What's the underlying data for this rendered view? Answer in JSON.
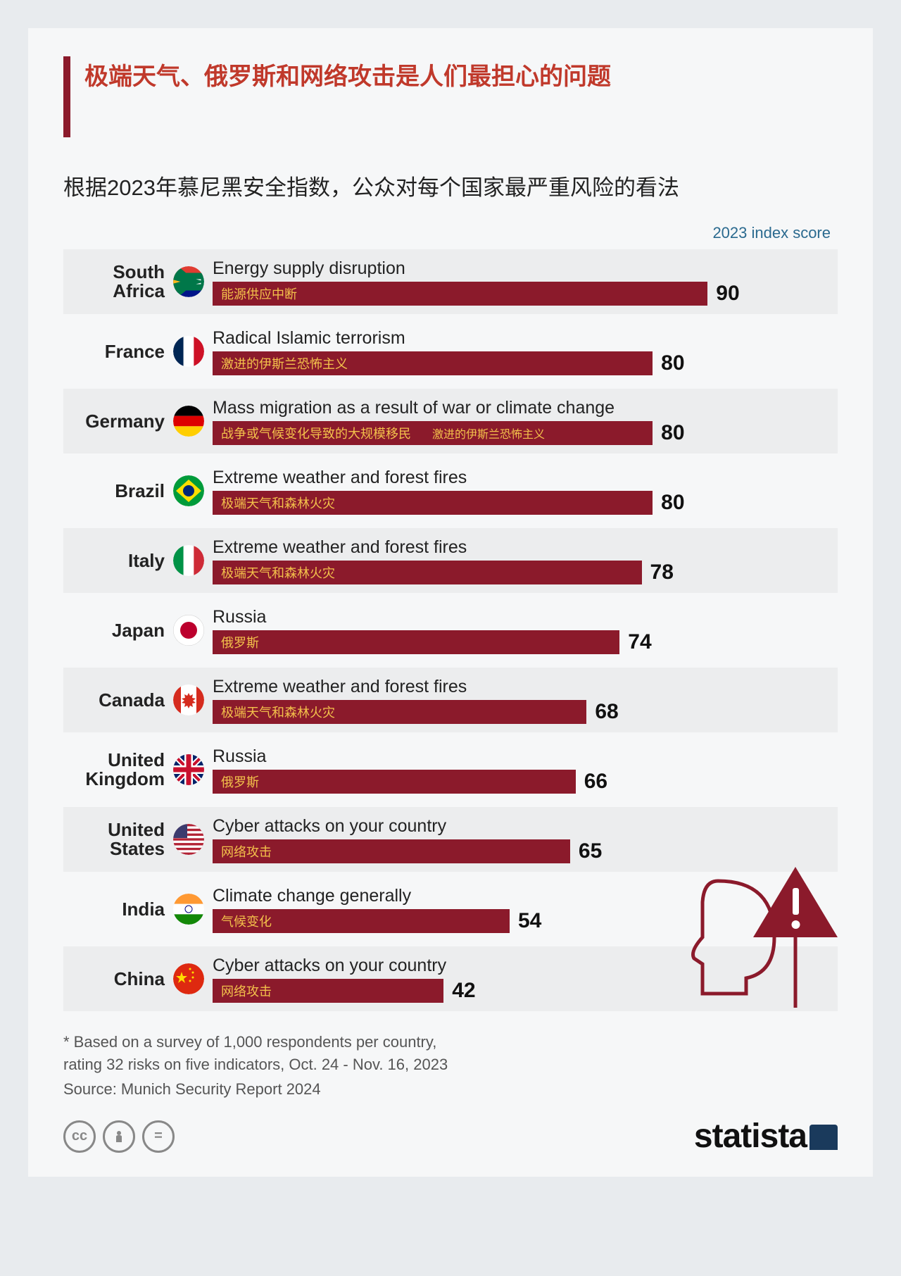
{
  "title": "极端天气、俄罗斯和网络攻击是人们最担心的问题",
  "subtitle": "根据2023年慕尼黑安全指数，公众对每个国家最严重风险的看法",
  "score_label": "2023 index score",
  "chart": {
    "type": "bar",
    "max_value": 100,
    "bar_color": "#8b1a2b",
    "bar_text_color": "#f3c14b",
    "value_fontsize": 30,
    "countries": [
      {
        "name": "South Africa",
        "risk_en": "Energy supply disruption",
        "risk_zh": "能源供应中断",
        "value": 90,
        "flag": "za",
        "extra": ""
      },
      {
        "name": "France",
        "risk_en": "Radical Islamic terrorism",
        "risk_zh": "激进的伊斯兰恐怖主义",
        "value": 80,
        "flag": "fr",
        "extra": ""
      },
      {
        "name": "Germany",
        "risk_en": "Mass migration as a result of war or climate change",
        "risk_zh": "战争或气候变化导致的大规模移民",
        "value": 80,
        "flag": "de",
        "extra": "激进的伊斯兰恐怖主义"
      },
      {
        "name": "Brazil",
        "risk_en": "Extreme weather and forest fires",
        "risk_zh": "极端天气和森林火灾",
        "value": 80,
        "flag": "br",
        "extra": ""
      },
      {
        "name": "Italy",
        "risk_en": "Extreme weather and forest fires",
        "risk_zh": "极端天气和森林火灾",
        "value": 78,
        "flag": "it",
        "extra": ""
      },
      {
        "name": "Japan",
        "risk_en": "Russia",
        "risk_zh": "俄罗斯",
        "value": 74,
        "flag": "jp",
        "extra": ""
      },
      {
        "name": "Canada",
        "risk_en": "Extreme weather and forest fires",
        "risk_zh": "极端天气和森林火灾",
        "value": 68,
        "flag": "ca",
        "extra": ""
      },
      {
        "name": "United Kingdom",
        "risk_en": "Russia",
        "risk_zh": "俄罗斯",
        "value": 66,
        "flag": "uk",
        "extra": ""
      },
      {
        "name": "United States",
        "risk_en": "Cyber attacks on your country",
        "risk_zh": "网络攻击",
        "value": 65,
        "flag": "us",
        "extra": ""
      },
      {
        "name": "India",
        "risk_en": "Climate change generally",
        "risk_zh": "气候变化",
        "value": 54,
        "flag": "in",
        "extra": ""
      },
      {
        "name": "China",
        "risk_en": "Cyber attacks on your country",
        "risk_zh": "网络攻击",
        "value": 42,
        "flag": "cn",
        "extra": ""
      }
    ]
  },
  "footnote": "* Based on a survey of 1,000 respondents per country,\n   rating 32 risks on five indicators, Oct. 24 - Nov. 16, 2023",
  "source": "Source: Munich Security Report 2024",
  "logo": "statista",
  "colors": {
    "page_bg": "#e8ebee",
    "card_bg": "#f6f7f8",
    "title_bar": "#8b1a2b",
    "title_text": "#c0392b",
    "score_label": "#2b6a8f",
    "decoration": "#8b1a2b"
  },
  "flags": {
    "za": "<svg viewBox='0 0 44 44'><defs><clipPath id='cza'><circle cx='22' cy='22' r='22'/></clipPath></defs><g clip-path='url(#cza)'><rect width='44' height='14.6' fill='#e03c31'/><rect y='14.6' width='44' height='14.6' fill='#fff'/><rect y='29.3' width='44' height='14.6' fill='#001489'/><path d='M0 0 L22 22 L0 44 Z' fill='#000'/><path d='M0 4 L18 22 L0 40 Z' fill='#ffb81c'/><path d='M-2 14 L44 14 L44 30 L-2 30 L28 22 Z M0 0 L26 22 L0 44' fill='none' stroke='#007749' stroke-width='9'/></g></svg>",
    "fr": "<svg viewBox='0 0 44 44'><defs><clipPath id='cfr'><circle cx='22' cy='22' r='22'/></clipPath></defs><g clip-path='url(#cfr)'><rect width='14.67' height='44' fill='#002654'/><rect x='14.67' width='14.67' height='44' fill='#fff'/><rect x='29.33' width='14.67' height='44' fill='#ce1126'/></g></svg>",
    "de": "<svg viewBox='0 0 44 44'><defs><clipPath id='cde'><circle cx='22' cy='22' r='22'/></clipPath></defs><g clip-path='url(#cde)'><rect width='44' height='14.67' fill='#000'/><rect y='14.67' width='44' height='14.67' fill='#dd0000'/><rect y='29.33' width='44' height='14.67' fill='#ffce00'/></g></svg>",
    "br": "<svg viewBox='0 0 44 44'><defs><clipPath id='cbr'><circle cx='22' cy='22' r='22'/></clipPath></defs><g clip-path='url(#cbr)'><rect width='44' height='44' fill='#009b3a'/><path d='M22 6 L40 22 L22 38 L4 22 Z' fill='#fedf00'/><circle cx='22' cy='22' r='8' fill='#002776'/></g></svg>",
    "it": "<svg viewBox='0 0 44 44'><defs><clipPath id='cit'><circle cx='22' cy='22' r='22'/></clipPath></defs><g clip-path='url(#cit)'><rect width='14.67' height='44' fill='#009246'/><rect x='14.67' width='14.67' height='44' fill='#fff'/><rect x='29.33' width='14.67' height='44' fill='#ce2b37'/></g></svg>",
    "jp": "<svg viewBox='0 0 44 44'><circle cx='22' cy='22' r='22' fill='#fff' stroke='#ccc'/><circle cx='22' cy='22' r='12' fill='#bc002d'/></svg>",
    "ca": "<svg viewBox='0 0 44 44'><defs><clipPath id='cca'><circle cx='22' cy='22' r='22'/></clipPath></defs><g clip-path='url(#cca)'><rect width='44' height='44' fill='#fff'/><rect width='11' height='44' fill='#d52b1e'/><rect x='33' width='11' height='44' fill='#d52b1e'/><path d='M22 12 l2 4 l4-2 l-1 5 l5 1 l-4 3 l4 3 l-5 1 l1 5 l-4-2 l-2 4 l-2-4 l-4 2 l1-5 l-5-1 l4-3 l-4-3 l5-1 l-1-5 l4 2 z' fill='#d52b1e'/></g></svg>",
    "uk": "<svg viewBox='0 0 44 44'><defs><clipPath id='cuk'><circle cx='22' cy='22' r='22'/></clipPath></defs><g clip-path='url(#cuk)'><rect width='44' height='44' fill='#012169'/><path d='M0 0 L44 44 M44 0 L0 44' stroke='#fff' stroke-width='8'/><path d='M0 0 L44 44 M44 0 L0 44' stroke='#c8102e' stroke-width='4'/><path d='M22 0 V44 M0 22 H44' stroke='#fff' stroke-width='12'/><path d='M22 0 V44 M0 22 H44' stroke='#c8102e' stroke-width='7'/></g></svg>",
    "us": "<svg viewBox='0 0 44 44'><defs><clipPath id='cus'><circle cx='22' cy='22' r='22'/></clipPath></defs><g clip-path='url(#cus)'><rect width='44' height='44' fill='#b22234'/><g fill='#fff'><rect y='3.4' width='44' height='3.4'/><rect y='10.2' width='44' height='3.4'/><rect y='16.9' width='44' height='3.4'/><rect y='23.7' width='44' height='3.4'/><rect y='30.5' width='44' height='3.4'/><rect y='37.2' width='44' height='3.4'/></g><rect width='20' height='20' fill='#3c3b6e'/></g></svg>",
    "in": "<svg viewBox='0 0 44 44'><defs><clipPath id='cin'><circle cx='22' cy='22' r='22'/></clipPath></defs><g clip-path='url(#cin)'><rect width='44' height='14.67' fill='#ff9933'/><rect y='14.67' width='44' height='14.67' fill='#fff'/><rect y='29.33' width='44' height='14.67' fill='#138808'/><circle cx='22' cy='22' r='5' fill='none' stroke='#000080' stroke-width='1'/></g></svg>",
    "cn": "<svg viewBox='0 0 44 44'><defs><clipPath id='ccn'><circle cx='22' cy='22' r='22'/></clipPath></defs><g clip-path='url(#ccn)'><rect width='44' height='44' fill='#de2910'/><path d='M12 12 l2 6 l6 0 l-5 4 l2 6 l-5-4 l-5 4 l2-6 l-5-4 l6 0 z' fill='#ffde00'/><circle cx='24' cy='8' r='1.5' fill='#ffde00'/><circle cx='28' cy='13' r='1.5' fill='#ffde00'/><circle cx='28' cy='20' r='1.5' fill='#ffde00'/><circle cx='24' cy='25' r='1.5' fill='#ffde00'/></g></svg>"
  }
}
